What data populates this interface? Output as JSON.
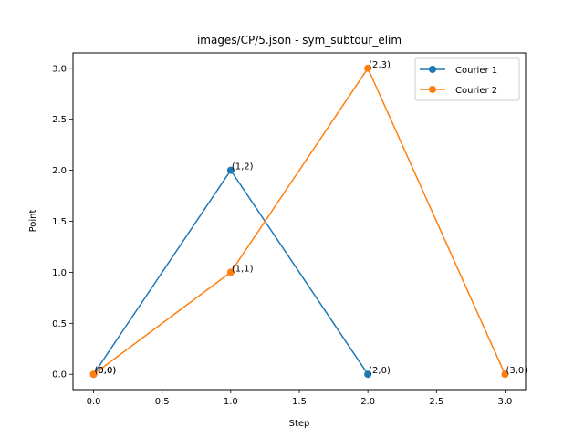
{
  "chart_data": {
    "type": "line",
    "title": "images/CP/5.json - sym_subtour_elim",
    "xlabel": "Step",
    "ylabel": "Point",
    "xlim": [
      -0.15,
      3.15
    ],
    "ylim": [
      -0.15,
      3.15
    ],
    "xticks": [
      0.0,
      0.5,
      1.0,
      1.5,
      2.0,
      2.5,
      3.0
    ],
    "xtick_labels": [
      "0.0",
      "0.5",
      "1.0",
      "1.5",
      "2.0",
      "2.5",
      "3.0"
    ],
    "yticks": [
      0.0,
      0.5,
      1.0,
      1.5,
      2.0,
      2.5,
      3.0
    ],
    "ytick_labels": [
      "0.0",
      "0.5",
      "1.0",
      "1.5",
      "2.0",
      "2.5",
      "3.0"
    ],
    "grid": false,
    "legend_position": "top-right",
    "series": [
      {
        "name": "Courier 1",
        "color": "#1f77b4",
        "x": [
          0,
          1,
          2
        ],
        "y": [
          0,
          2,
          0
        ],
        "labels": [
          "(0,0)",
          "(1,2)",
          "(2,0)"
        ]
      },
      {
        "name": "Courier 2",
        "color": "#ff7f0e",
        "x": [
          0,
          1,
          2,
          3
        ],
        "y": [
          0,
          1,
          3,
          0
        ],
        "labels": [
          "(0,0)",
          "(1,1)",
          "(2,3)",
          "(3,0)"
        ]
      }
    ]
  }
}
